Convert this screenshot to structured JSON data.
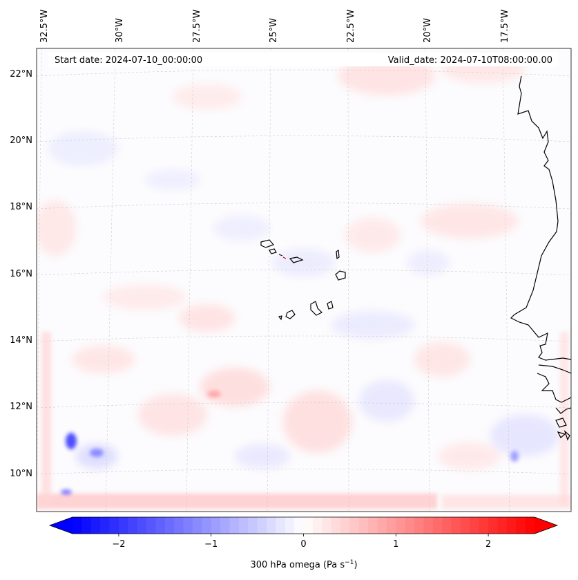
{
  "map": {
    "lon_labels": [
      "32.5°W",
      "30°W",
      "27.5°W",
      "25°W",
      "22.5°W",
      "20°W",
      "17.5°W"
    ],
    "lat_labels": [
      "22°N",
      "20°N",
      "18°N",
      "16°N",
      "14°N",
      "12°N",
      "10°N"
    ],
    "start_date": "Start date: 2024-07-10_00:00:00",
    "valid_date": "Valid_date: 2024-07-10T08:00:00.00",
    "field": "300 hPa omega",
    "colormap": "bwr",
    "colors": {
      "negative": "#0000ff",
      "zero": "#ffffff",
      "positive": "#ff0000",
      "coastline": "#000000"
    }
  },
  "colorbar": {
    "min": -2.5,
    "max": 2.5,
    "extend": "both",
    "ticks": [
      {
        "value": -2,
        "label": "−2"
      },
      {
        "value": -1,
        "label": "−1"
      },
      {
        "value": 0,
        "label": "0"
      },
      {
        "value": 1,
        "label": "1"
      },
      {
        "value": 2,
        "label": "2"
      }
    ],
    "label_main": "300 hPa omega (Pa s",
    "label_exp": "−1",
    "label_close": ")"
  }
}
